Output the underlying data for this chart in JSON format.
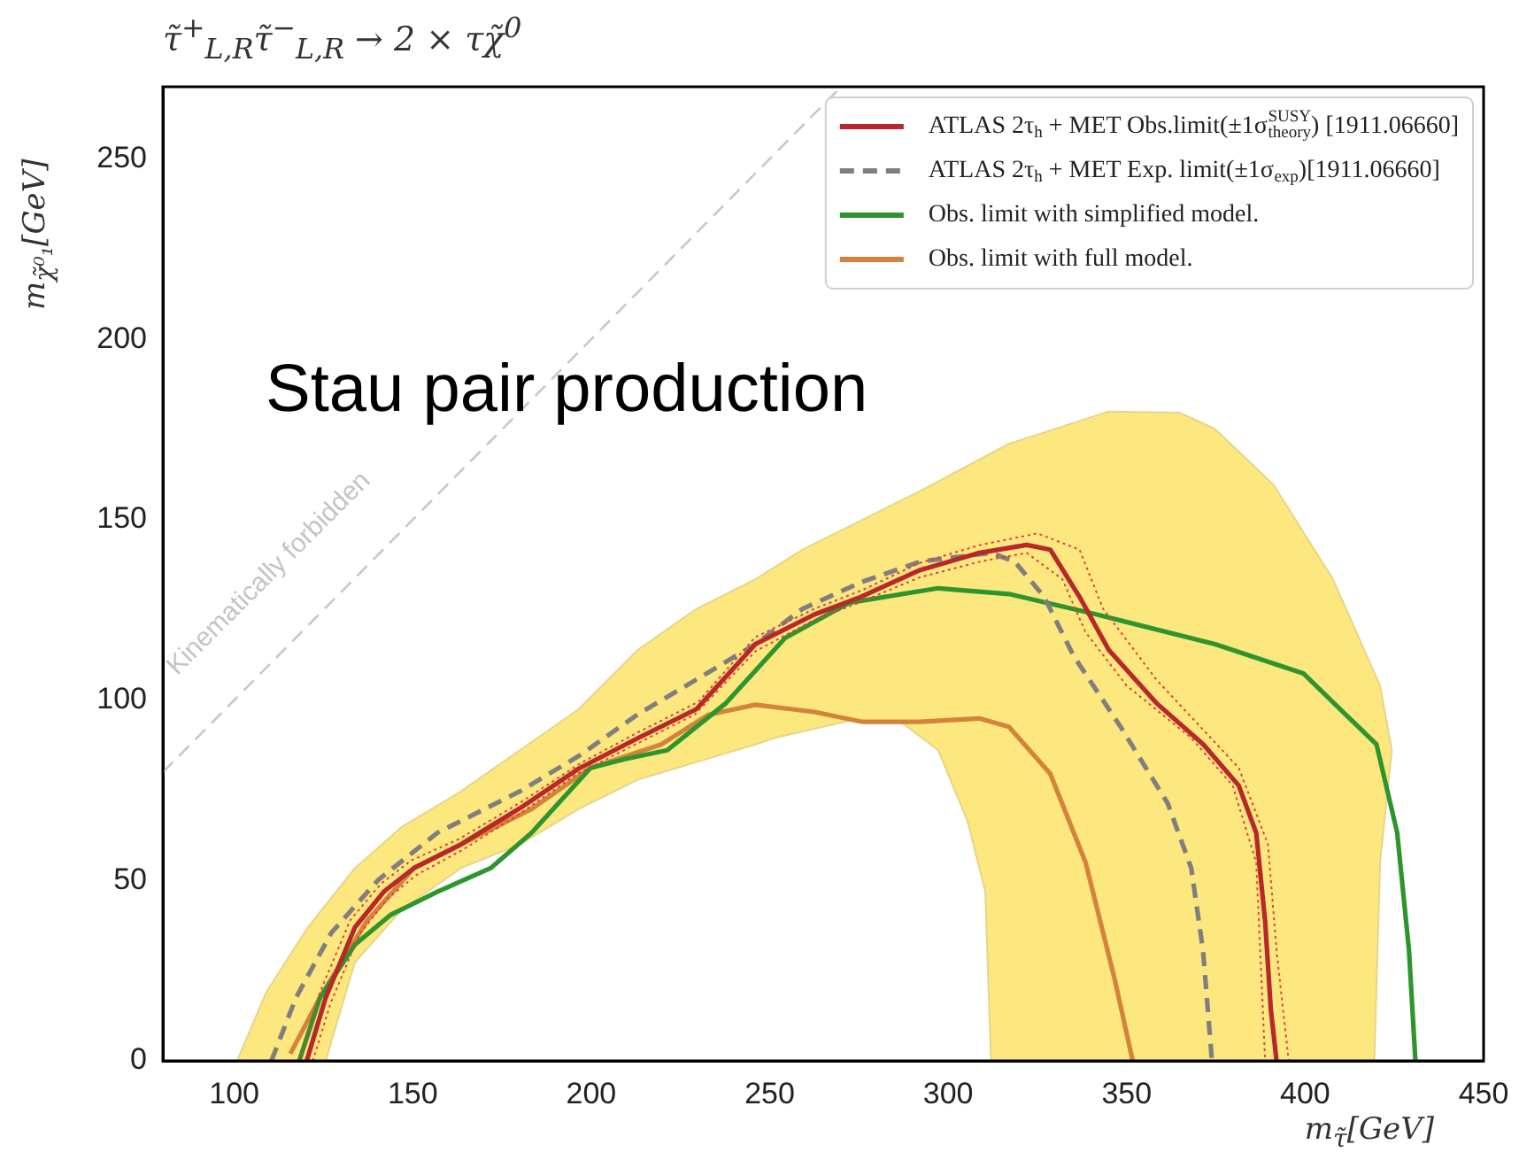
{
  "chart_data": {
    "type": "line",
    "title": "τ̃$^{+}$$_{L,R}$τ̃$^{−}$$_{L,R}$  → 2 × τχ̃$^{0}$",
    "xlabel": "m$_{τ̃}$[GeV]",
    "ylabel": "m$_{χ̃⁰₁}$[GeV]",
    "xlim": [
      80,
      450
    ],
    "ylim": [
      0,
      270
    ],
    "xticks": [
      100,
      150,
      200,
      250,
      300,
      350,
      400,
      450
    ],
    "yticks": [
      0,
      50,
      100,
      150,
      200,
      250
    ],
    "legend": "top right",
    "annotations": [
      "Stau pair production",
      "Kinematically forbidden"
    ],
    "series": [
      {
        "type": "area",
        "color": "#fde77f",
        "x": [
          100.8,
          109,
          120.6,
          133.8,
          147,
          163.5,
          180,
          196.5,
          213,
          229.5,
          246,
          259.2,
          275.7,
          292.2,
          316.9,
          345,
          364.8,
          374.7,
          391.2,
          407.8,
          421,
          424.3,
          421,
          419.4,
          312,
          310.4,
          305.4,
          297.2,
          287.3,
          272.4,
          251,
          246,
          229.5,
          213,
          196.5,
          180,
          163.5,
          147,
          133.8,
          125.6
        ],
        "values": [
          0,
          19.1,
          37,
          53.4,
          64.9,
          74.7,
          86.1,
          97.5,
          113.9,
          125.3,
          133.5,
          141.7,
          149.8,
          158,
          171,
          180,
          179.7,
          175.2,
          159.6,
          133.5,
          104,
          86.1,
          55,
          0,
          0,
          46.9,
          66.5,
          86.1,
          93.5,
          94.3,
          89.4,
          87.7,
          82.8,
          77.9,
          69.8,
          60,
          53.4,
          42,
          27.3,
          0
        ]
      },
      {
        "type": "line",
        "color": "#c8c8c8",
        "line_style": "dashed",
        "x": [
          80,
          270
        ],
        "values": [
          80,
          270
        ]
      },
      {
        "type": "line",
        "color": "#e0413a",
        "line_style": "dotted",
        "x": [
          122,
          127,
          135,
          143,
          151,
          164,
          180,
          196,
          213,
          229,
          246,
          262,
          275,
          292,
          309,
          322,
          332,
          338.5,
          350,
          368.2,
          379.7,
          386.3,
          388.8
        ],
        "values": [
          0,
          16,
          35,
          45,
          51.5,
          58.5,
          68.5,
          79.5,
          88,
          96,
          113.5,
          122,
          127,
          134,
          138.4,
          140.8,
          133.5,
          118.8,
          104,
          89.4,
          76.3,
          55,
          0
        ]
      },
      {
        "type": "line",
        "color": "#e0413a",
        "line_style": "dotted",
        "x": [
          118.5,
          124,
          132.5,
          141,
          149.5,
          163,
          180,
          197,
          213,
          230,
          246,
          263,
          276,
          292,
          309,
          325,
          336.8,
          343.4,
          358.3,
          381.4,
          389.6,
          392,
          395.4
        ],
        "values": [
          0,
          19,
          39,
          49,
          55.5,
          61.5,
          71.5,
          82.5,
          91,
          99.5,
          117.5,
          125.5,
          130.5,
          138,
          143,
          146.2,
          141.7,
          125.3,
          105.7,
          81.2,
          60,
          30.6,
          0
        ]
      },
      {
        "type": "line",
        "name": "ATLAS 2τ$_{h}$ + MET Obs.limit(±1σ$^{SUSY}$$_{theory}$) [1911.06660]",
        "color": "#b8272a",
        "x": [
          120.3,
          125.6,
          133.8,
          142,
          150.3,
          163.5,
          180,
          196.5,
          213,
          229.5,
          246,
          262.5,
          275.5,
          292,
          308.8,
          322,
          328.6,
          336.8,
          345,
          358.3,
          371.5,
          381.4,
          386.3,
          388.8,
          390.4,
          392
        ],
        "values": [
          0,
          17.5,
          37,
          47,
          53.4,
          60,
          70,
          81,
          89.4,
          97.5,
          115.5,
          123.7,
          128.6,
          136,
          140.8,
          143,
          141.7,
          128.6,
          113.9,
          99.2,
          87.7,
          76.3,
          63.2,
          38.7,
          14.2,
          0
        ]
      },
      {
        "type": "line",
        "name": "ATLAS 2τ$_{h}$ + MET Exp. limit(±1σ$_{exp}$)[1911.06660]",
        "color": "#7f7f7f",
        "line_style": "dashed",
        "x": [
          110.4,
          117.3,
          127.2,
          140.4,
          156.9,
          180,
          196.5,
          213,
          229.5,
          246,
          259.2,
          275.7,
          292.2,
          312,
          318.6,
          326.9,
          335.1,
          348.3,
          361.5,
          368.1,
          371.4,
          373.9
        ],
        "values": [
          0,
          17.5,
          35.5,
          50.2,
          63.2,
          74.7,
          84.5,
          96,
          105.7,
          115.5,
          125.3,
          132.7,
          138.4,
          140.8,
          138.4,
          128.6,
          112.3,
          92.6,
          71.4,
          53.4,
          30.6,
          0
        ]
      },
      {
        "type": "line",
        "name": "Obs. limit with simplified model.",
        "color": "#2e952e",
        "x": [
          118.2,
          124,
          133.8,
          143.7,
          157,
          171.8,
          183.3,
          199.8,
          209.7,
          221.3,
          237.8,
          254.3,
          272.4,
          297.2,
          317,
          341.7,
          374.8,
          399.5,
          420,
          425.8,
          429.1,
          430.9
        ],
        "values": [
          0,
          17.5,
          32.2,
          40.4,
          46.9,
          53.4,
          63.2,
          81.2,
          83.7,
          86.1,
          99.2,
          117.2,
          127,
          131,
          129.4,
          123.7,
          115.5,
          107.4,
          87.7,
          63.2,
          30.6,
          0
        ]
      },
      {
        "type": "line",
        "name": "Obs. limit with full model.",
        "color": "#d4843a",
        "x": [
          115.7,
          124,
          137.1,
          150.3,
          166.8,
          183.3,
          199.8,
          219.6,
          232.8,
          246,
          262.5,
          275.7,
          292.2,
          308.7,
          317,
          328.6,
          338.5,
          346.7,
          351.7
        ],
        "values": [
          2,
          17.5,
          38.7,
          53.4,
          61.6,
          69.8,
          81.2,
          87.7,
          95.9,
          98.7,
          96.7,
          94,
          94,
          94.9,
          92.6,
          79.6,
          55,
          22.4,
          0
        ]
      }
    ]
  }
}
